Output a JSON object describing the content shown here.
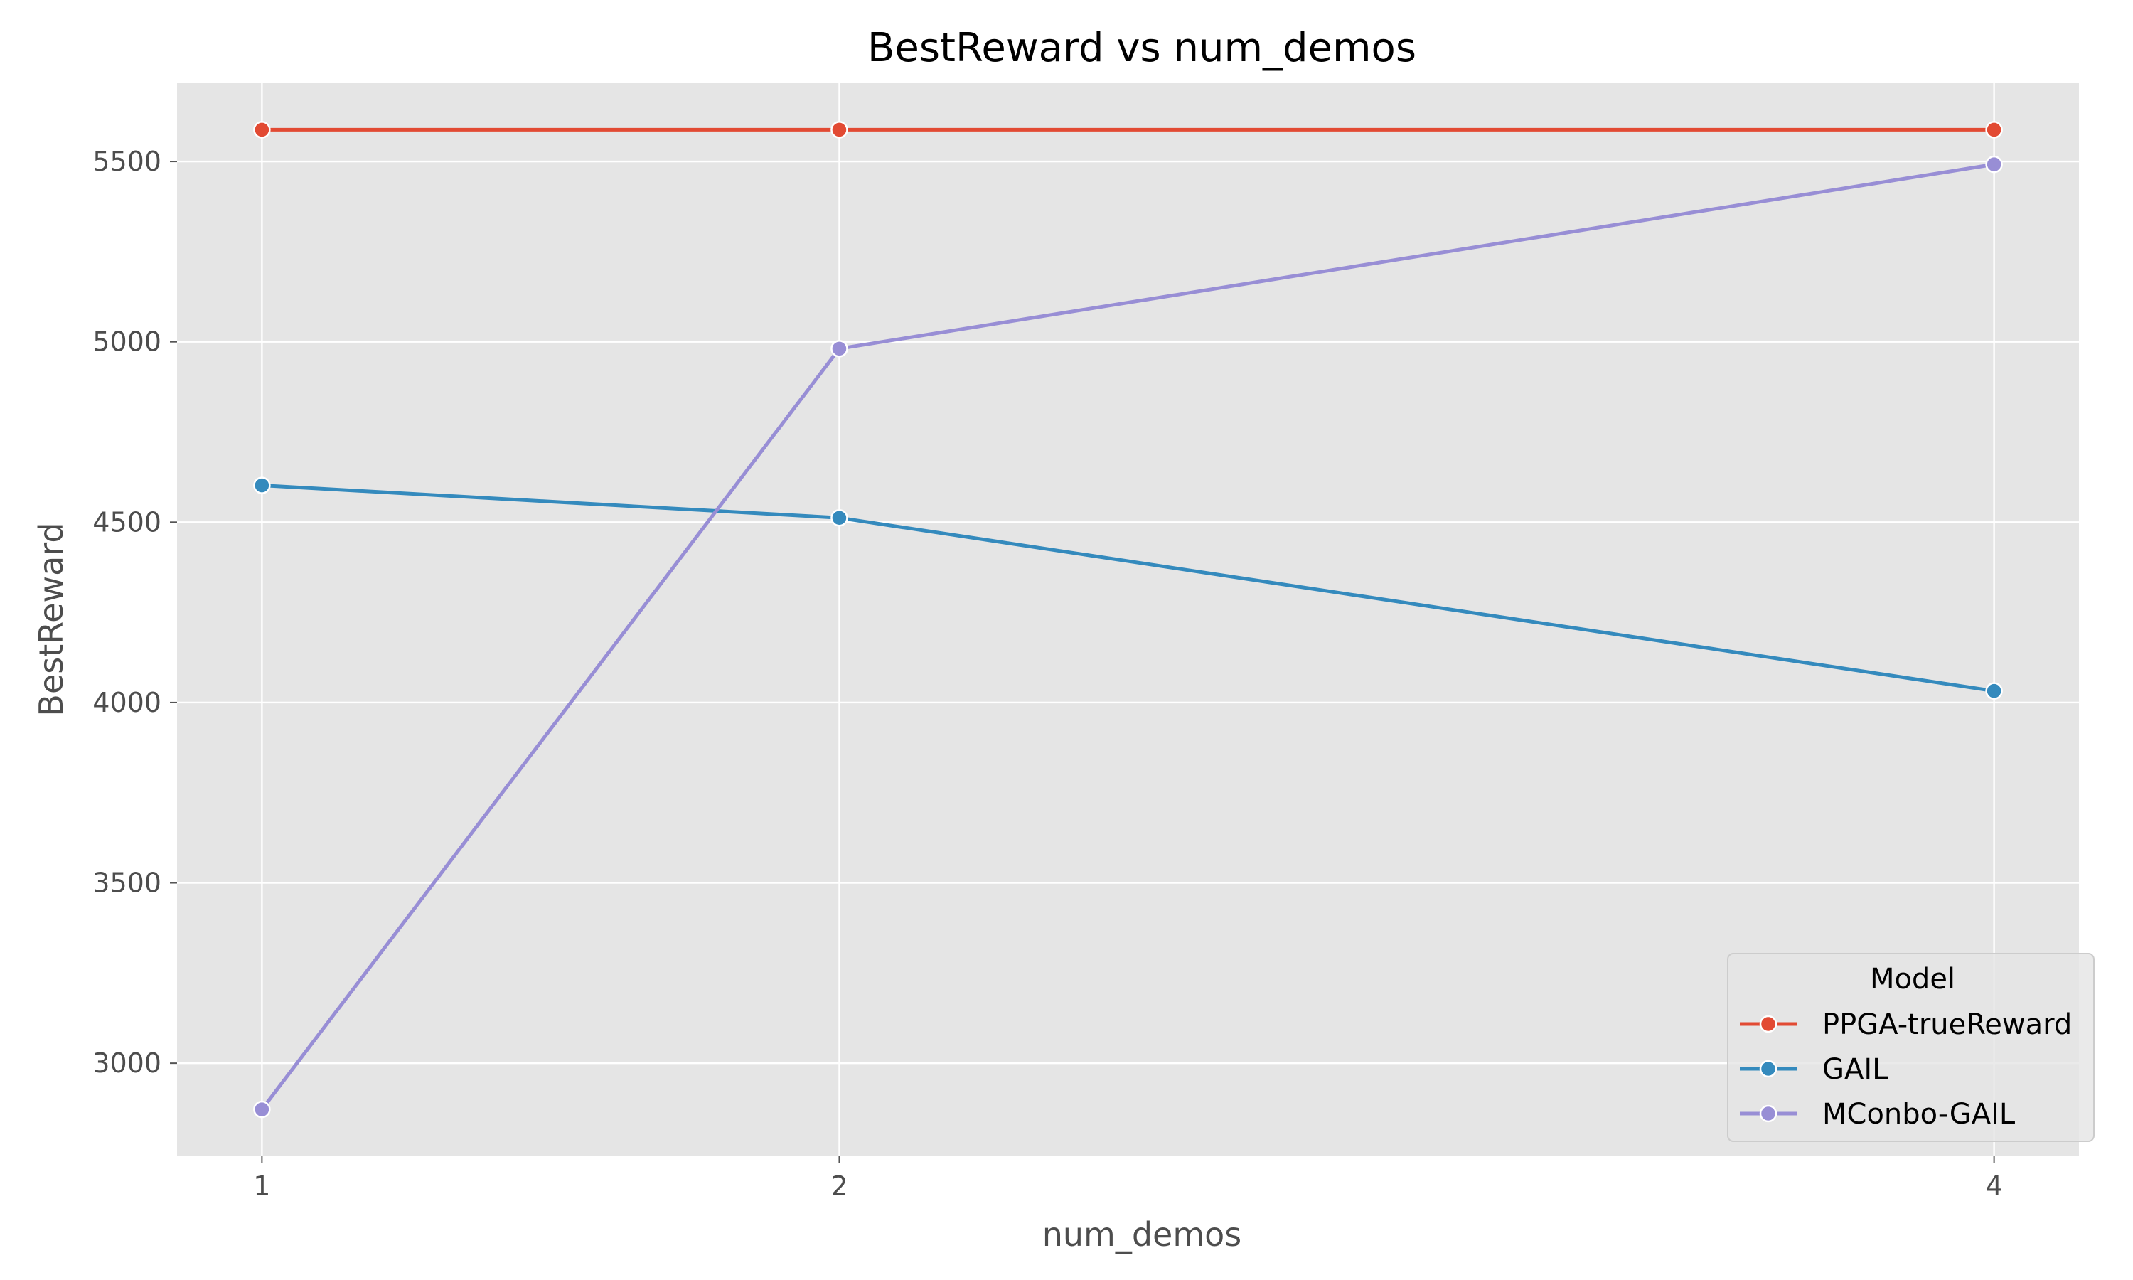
{
  "chart_data": {
    "type": "line",
    "title": "BestReward vs num_demos",
    "xlabel": "num_demos",
    "ylabel": "BestReward",
    "x": [
      1,
      2,
      4
    ],
    "xticks": [
      1,
      2,
      4
    ],
    "yticks": [
      3000,
      3500,
      4000,
      4500,
      5000,
      5500
    ],
    "xlim": [
      0.853,
      4.147
    ],
    "ylim": [
      2744,
      5717
    ],
    "grid": true,
    "legend": {
      "title": "Model",
      "placement": "lower-right"
    },
    "series": [
      {
        "name": "PPGA-trueReward",
        "color": "#e24a33",
        "values": [
          5588,
          5588,
          5588
        ]
      },
      {
        "name": "GAIL",
        "color": "#348abd",
        "values": [
          4602,
          4512,
          4032
        ]
      },
      {
        "name": "MConbo-GAIL",
        "color": "#988ed5",
        "values": [
          2872,
          4981,
          5492
        ]
      }
    ],
    "style": {
      "plot_background": "#e5e5e5",
      "grid_color": "#ffffff"
    }
  }
}
